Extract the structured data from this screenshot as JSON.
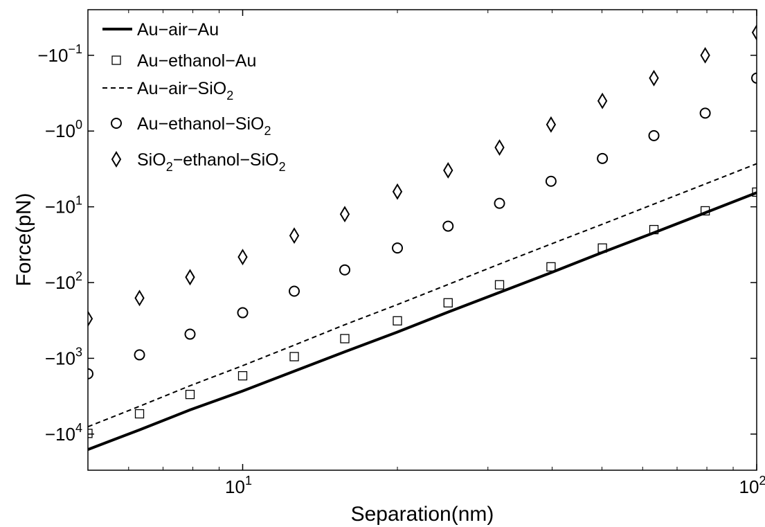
{
  "chart_data": {
    "type": "scatter",
    "title": "",
    "xlabel": "Separation(nm)",
    "ylabel": "Force(pN)",
    "xscale": "log",
    "yscale": "log",
    "y_sign": "negative",
    "xlim": [
      5,
      100
    ],
    "ylim": [
      -30000,
      -0.025
    ],
    "grid": false,
    "legend": "top-left",
    "x_ticks": [
      {
        "value": 10,
        "base": "10",
        "exp": "1"
      },
      {
        "value": 100,
        "base": "10",
        "exp": "2"
      }
    ],
    "y_ticks": [
      {
        "value": -10000,
        "base": "−10",
        "exp": "4"
      },
      {
        "value": -1000,
        "base": "−10",
        "exp": "3"
      },
      {
        "value": -100,
        "base": "−10",
        "exp": "2"
      },
      {
        "value": -10,
        "base": "−10",
        "exp": "1"
      },
      {
        "value": -1,
        "base": "−10",
        "exp": "0"
      },
      {
        "value": -0.1,
        "base": "−10",
        "exp": "−1"
      }
    ],
    "series": [
      {
        "name": "Au−air−Au",
        "legend_parts": [
          [
            "Au−air−Au",
            ""
          ]
        ],
        "style": "thick-line",
        "x": [
          5,
          6.3,
          7.9,
          10,
          12.6,
          15.8,
          20,
          25.1,
          31.6,
          39.8,
          50.1,
          63.1,
          79.4,
          100
        ],
        "y": [
          -16000,
          -8800,
          -4800,
          -2700,
          -1480,
          -820,
          -450,
          -245,
          -135,
          -74,
          -40,
          -22,
          -12,
          -6.5
        ]
      },
      {
        "name": "Au−ethanol−Au",
        "legend_parts": [
          [
            "Au−ethanol−Au",
            ""
          ]
        ],
        "style": "square",
        "x": [
          5,
          6.3,
          7.9,
          10,
          12.6,
          15.8,
          20,
          25.1,
          31.6,
          39.8,
          50.1,
          63.1,
          79.4,
          100
        ],
        "y": [
          -9800,
          -5400,
          -3000,
          -1700,
          -950,
          -550,
          -320,
          -185,
          -107,
          -62,
          -35,
          -20,
          -11.3,
          -6.4
        ]
      },
      {
        "name": "Au−air−SiO2",
        "legend_parts": [
          [
            "Au−air−SiO",
            "2"
          ]
        ],
        "style": "dashed-line",
        "x": [
          5,
          6.3,
          7.9,
          10,
          12.6,
          15.8,
          20,
          25.1,
          31.6,
          39.8,
          50.1,
          63.1,
          79.4,
          100
        ],
        "y": [
          -8000,
          -4300,
          -2300,
          -1250,
          -670,
          -360,
          -195,
          -106,
          -57,
          -31,
          -17,
          -9.2,
          -5.0,
          -2.7
        ]
      },
      {
        "name": "Au−ethanol−SiO2",
        "legend_parts": [
          [
            "Au−ethanol−SiO",
            "2"
          ]
        ],
        "style": "circle",
        "x": [
          5,
          6.3,
          7.9,
          10,
          12.6,
          15.8,
          20,
          25.1,
          31.6,
          39.8,
          50.1,
          63.1,
          79.4,
          100
        ],
        "y": [
          -1600,
          -900,
          -480,
          -250,
          -130,
          -68,
          -35,
          -18,
          -9,
          -4.6,
          -2.3,
          -1.15,
          -0.58,
          -0.2
        ]
      },
      {
        "name": "SiO2−ethanol−SiO2",
        "legend_parts": [
          [
            "SiO",
            "2"
          ],
          [
            "−ethanol−SiO",
            "2"
          ]
        ],
        "style": "diamond",
        "x": [
          5,
          6.3,
          7.9,
          10,
          12.6,
          15.8,
          20,
          25.1,
          31.6,
          39.8,
          50.1,
          63.1,
          79.4,
          100
        ],
        "y": [
          -300,
          -160,
          -85,
          -46,
          -24,
          -12.5,
          -6.3,
          -3.3,
          -1.65,
          -0.82,
          -0.4,
          -0.2,
          -0.1,
          -0.05
        ]
      }
    ]
  }
}
